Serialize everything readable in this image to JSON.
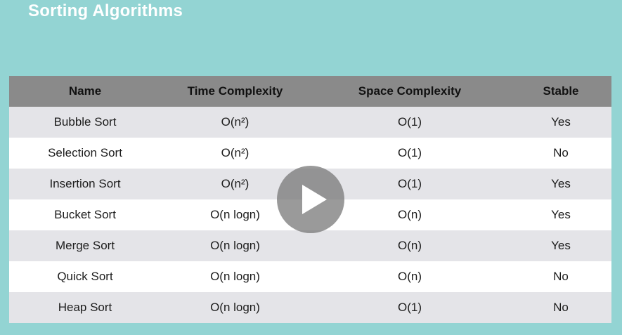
{
  "slide": {
    "title": "Sorting Algorithms"
  },
  "table": {
    "headers": [
      "Name",
      "Time Complexity",
      "Space Complexity",
      "Stable"
    ],
    "rows": [
      [
        "Bubble Sort",
        "O(n²)",
        "O(1)",
        "Yes"
      ],
      [
        "Selection Sort",
        "O(n²)",
        "O(1)",
        "No"
      ],
      [
        "Insertion Sort",
        "O(n²)",
        "O(1)",
        "Yes"
      ],
      [
        "Bucket Sort",
        "O(n logn)",
        "O(n)",
        "Yes"
      ],
      [
        "Merge Sort",
        "O(n logn)",
        "O(n)",
        "Yes"
      ],
      [
        "Quick Sort",
        "O(n logn)",
        "O(n)",
        "No"
      ],
      [
        "Heap Sort",
        "O(n logn)",
        "O(1)",
        "No"
      ]
    ]
  },
  "player": {
    "icon": "play-icon"
  },
  "colors": {
    "background": "#93d4d3",
    "header": "#8a8a8a",
    "row_alt": "#e4e4e8"
  }
}
